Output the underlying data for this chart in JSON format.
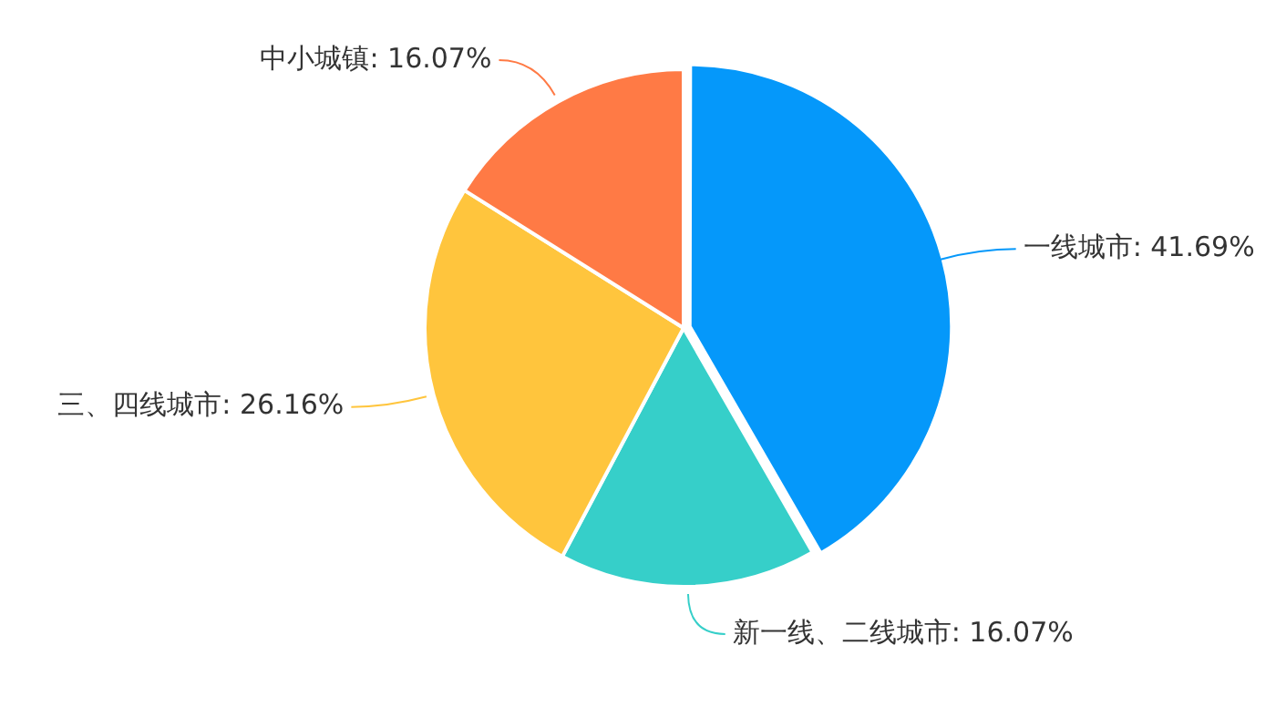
{
  "chart_data": {
    "type": "pie",
    "categories": [
      "一线城市",
      "新一线、二线城市",
      "三、四线城市",
      "中小城镇"
    ],
    "values": [
      41.69,
      16.07,
      26.16,
      16.07
    ],
    "value_labels": [
      "41.69%",
      "16.07%",
      "26.16%",
      "16.07%"
    ],
    "colors": [
      "#0598fa",
      "#36cfc9",
      "#ffc53d",
      "#ff7a45"
    ],
    "legend": false
  }
}
